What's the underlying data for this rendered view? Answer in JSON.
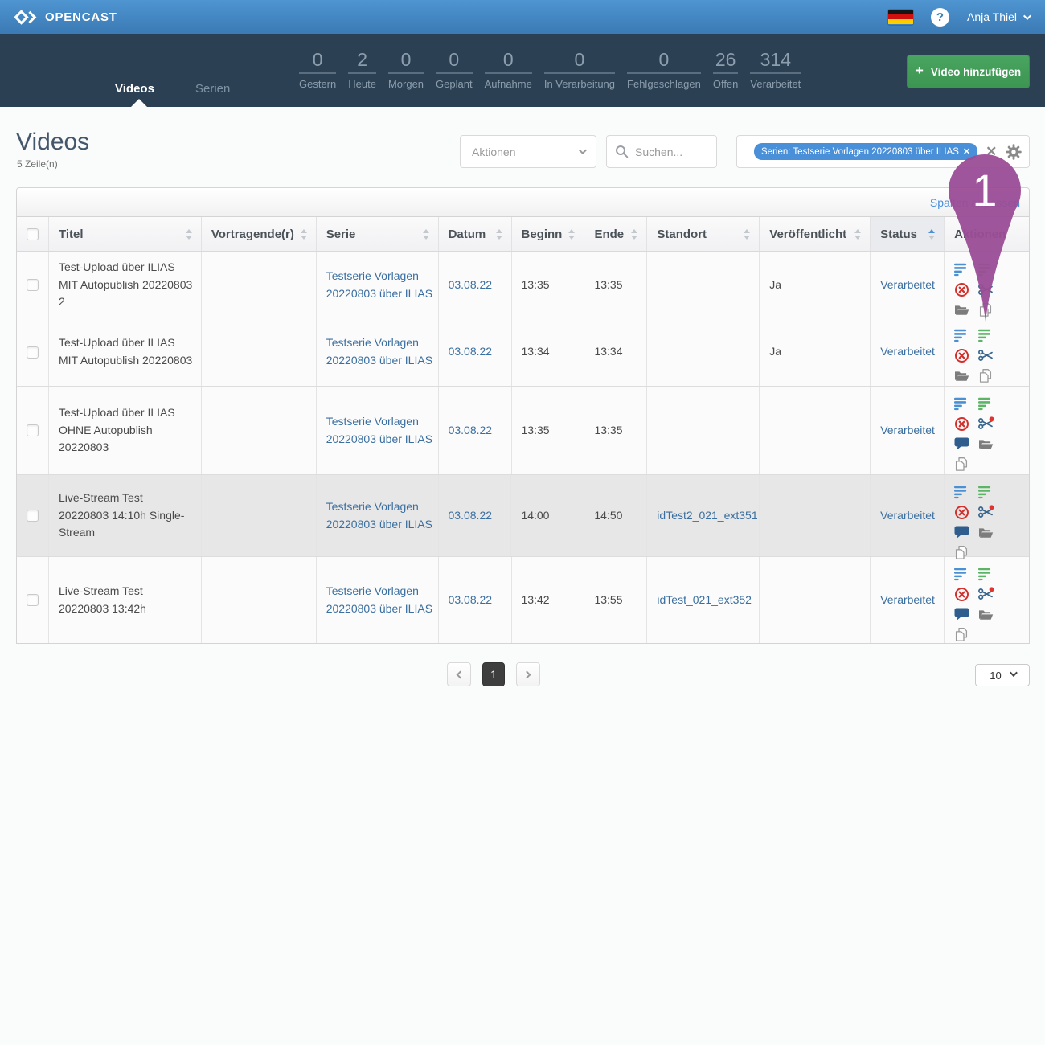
{
  "topbar": {
    "brand": "OPENCAST",
    "help_glyph": "?",
    "user": "Anja Thiel",
    "flag": "german-flag"
  },
  "nav": {
    "tabs": [
      {
        "label": "Videos",
        "active": true
      },
      {
        "label": "Serien",
        "active": false
      }
    ],
    "stats": [
      {
        "value": "0",
        "label": "Gestern"
      },
      {
        "value": "2",
        "label": "Heute"
      },
      {
        "value": "0",
        "label": "Morgen"
      },
      {
        "value": "0",
        "label": "Geplant"
      },
      {
        "value": "0",
        "label": "Aufnahme"
      },
      {
        "value": "0",
        "label": "In Verarbeitung"
      },
      {
        "value": "0",
        "label": "Fehlgeschlagen"
      },
      {
        "value": "26",
        "label": "Offen"
      },
      {
        "value": "314",
        "label": "Verarbeitet"
      }
    ],
    "add_button": "Video hinzufügen"
  },
  "page": {
    "title": "Videos",
    "row_count": "5 Zeile(n)"
  },
  "controls": {
    "actions_label": "Aktionen",
    "search_placeholder": "Suchen...",
    "filter_chip": "Serien: Testserie Vorlagen 20220803 über ILIAS",
    "chip_close": "✕",
    "clear_glyph": "✕",
    "columns_link": "Spalten anpassen"
  },
  "table": {
    "columns": [
      {
        "label": "",
        "sortable": false
      },
      {
        "label": "Titel",
        "sortable": true
      },
      {
        "label": "Vortragende(r)",
        "sortable": true
      },
      {
        "label": "Serie",
        "sortable": true
      },
      {
        "label": "Datum",
        "sortable": true
      },
      {
        "label": "Beginn",
        "sortable": true
      },
      {
        "label": "Ende",
        "sortable": true
      },
      {
        "label": "Standort",
        "sortable": true
      },
      {
        "label": "Veröffentlicht",
        "sortable": true
      },
      {
        "label": "Status",
        "sortable": true,
        "sorted": "asc"
      },
      {
        "label": "Aktionen",
        "sortable": false
      }
    ],
    "rows": [
      {
        "title": "Test-Upload über ILIAS MIT Autopublish 20220803 2",
        "presenter": "",
        "series": "Testserie Vorlagen 20220803 über ILIAS",
        "date": "03.08.22",
        "start": "13:35",
        "end": "13:35",
        "location": "",
        "published": "Ja",
        "status": "Verarbeitet",
        "highlight": false,
        "actions": [
          "metadata",
          "series",
          "delete",
          "cut",
          "assets",
          "duplicate"
        ]
      },
      {
        "title": "Test-Upload über ILIAS MIT Autopublish 20220803",
        "presenter": "",
        "series": "Testserie Vorlagen 20220803 über ILIAS",
        "date": "03.08.22",
        "start": "13:34",
        "end": "13:34",
        "location": "",
        "published": "Ja",
        "status": "Verarbeitet",
        "highlight": false,
        "actions": [
          "metadata",
          "series",
          "delete",
          "cut",
          "assets",
          "duplicate"
        ]
      },
      {
        "title": "Test-Upload über ILIAS OHNE Autopublish 20220803",
        "presenter": "",
        "series": "Testserie Vorlagen 20220803 über ILIAS",
        "date": "03.08.22",
        "start": "13:35",
        "end": "13:35",
        "location": "",
        "published": "",
        "status": "Verarbeitet",
        "highlight": false,
        "actions": [
          "metadata",
          "series",
          "delete",
          "cut-flagged",
          "comments",
          "assets",
          "duplicate"
        ]
      },
      {
        "title": "Live-Stream Test 20220803 14:10h Single-Stream",
        "presenter": "",
        "series": "Testserie Vorlagen 20220803 über ILIAS",
        "date": "03.08.22",
        "start": "14:00",
        "end": "14:50",
        "location": "idTest2_021_ext351",
        "published": "",
        "status": "Verarbeitet",
        "highlight": true,
        "actions": [
          "metadata",
          "series",
          "delete",
          "cut-flagged",
          "comments",
          "assets",
          "duplicate"
        ]
      },
      {
        "title": "Live-Stream Test 20220803 13:42h",
        "presenter": "",
        "series": "Testserie Vorlagen 20220803 über ILIAS",
        "date": "03.08.22",
        "start": "13:42",
        "end": "13:55",
        "location": "idTest_021_ext352",
        "published": "",
        "status": "Verarbeitet",
        "highlight": false,
        "actions": [
          "metadata",
          "series",
          "delete",
          "cut-flagged",
          "comments",
          "assets",
          "duplicate"
        ]
      }
    ]
  },
  "pagination": {
    "active": "1",
    "page_size": "10"
  },
  "annotation": {
    "label": "1"
  },
  "colors": {
    "accent_blue": "#4A90D9",
    "link_blue": "#3B6FA0",
    "button_green": "#42A05C",
    "pin_purple": "#9B4D96",
    "delete_red": "#D2322D",
    "series_green": "#5CB567",
    "nav_dark": "#2C4054",
    "topbar_blue": "#3F81BA"
  }
}
